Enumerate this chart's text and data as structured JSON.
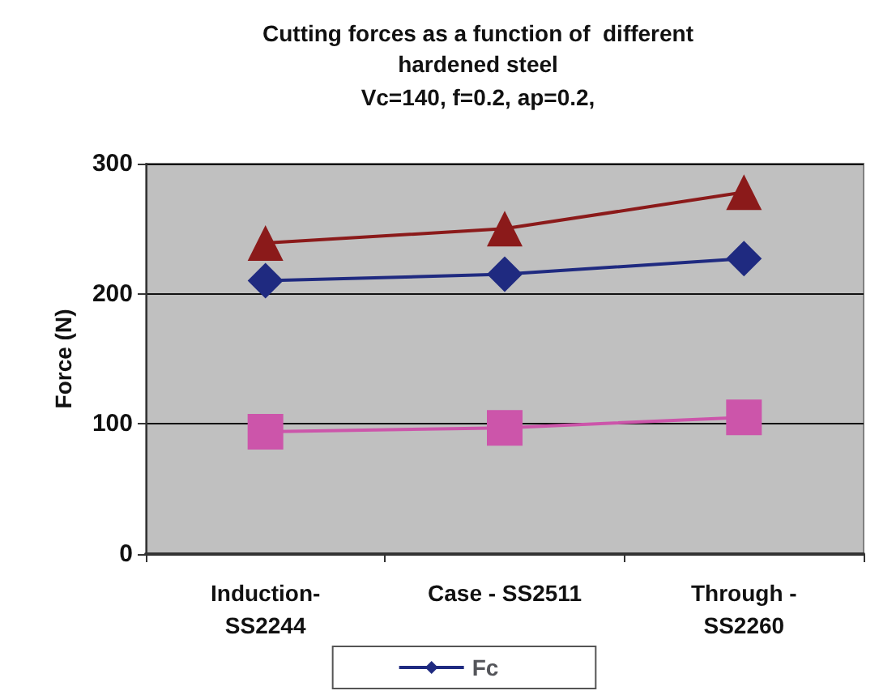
{
  "chart_data": {
    "type": "line",
    "title": "Cutting forces as a function of  different\nhardened steel",
    "subtitle": "Vc=140, f=0.2, ap=0.2,",
    "ylabel": "Force (N)",
    "categories": [
      "Induction-\nSS2244",
      "Case - SS2511",
      "Through -\nSS2260"
    ],
    "series": [
      {
        "name": "Fc",
        "color": "#1f2a80",
        "marker": "diamond",
        "values": [
          210,
          215,
          227
        ]
      },
      {
        "color": "#cc55aa",
        "marker": "square",
        "values": [
          94,
          97,
          105
        ]
      },
      {
        "color": "#8b1a1a",
        "marker": "triangle",
        "values": [
          239,
          250,
          278
        ]
      }
    ],
    "ylim": [
      0,
      300
    ],
    "yticks": [
      0,
      100,
      200,
      300
    ],
    "grid": "y",
    "legend": "bottom"
  }
}
